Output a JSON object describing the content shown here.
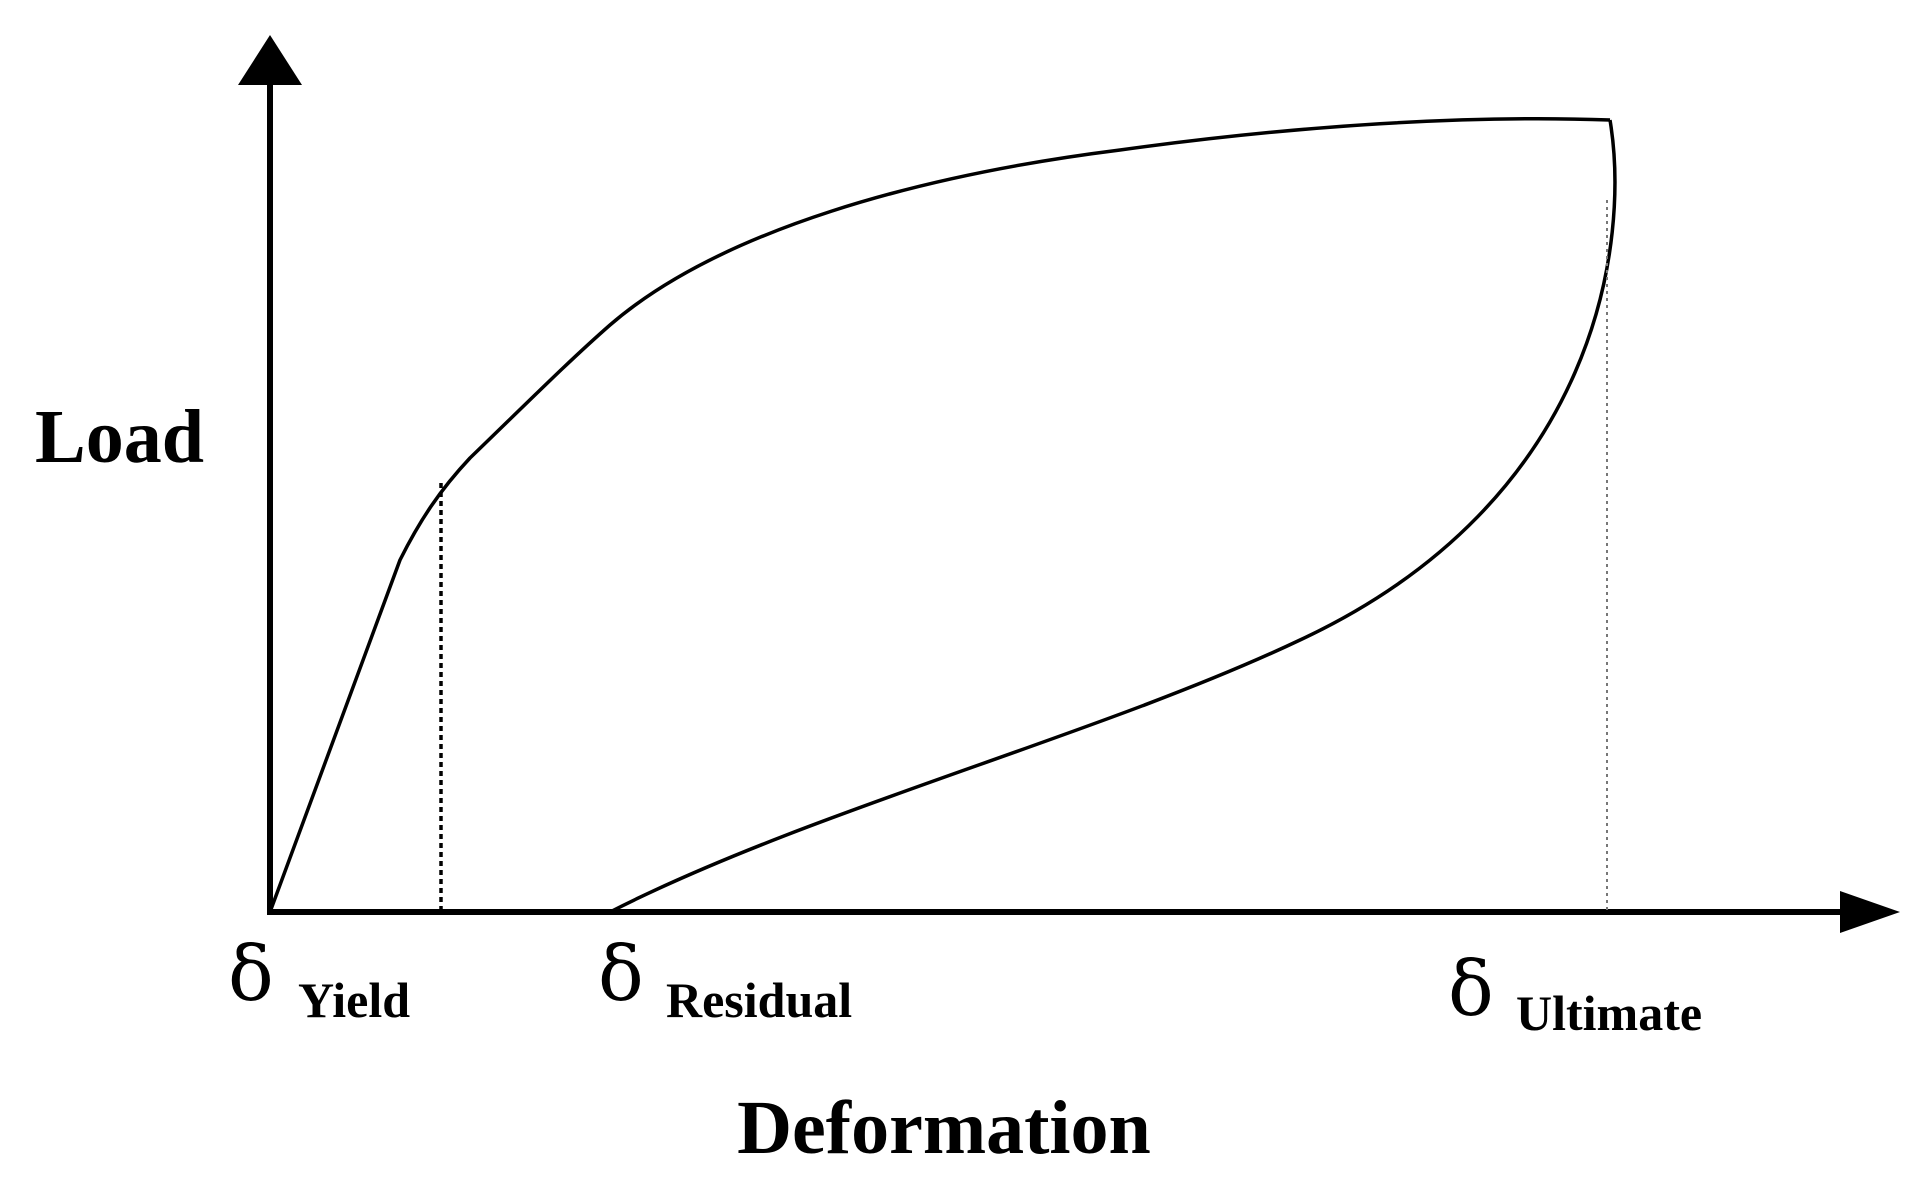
{
  "diagram": {
    "y_axis_label": "Load",
    "x_axis_label": "Deformation",
    "points": [
      {
        "symbol": "δ",
        "subscript": "Yield"
      },
      {
        "symbol": "δ",
        "subscript": "Residual"
      },
      {
        "symbol": "δ",
        "subscript": "Ultimate"
      }
    ]
  }
}
